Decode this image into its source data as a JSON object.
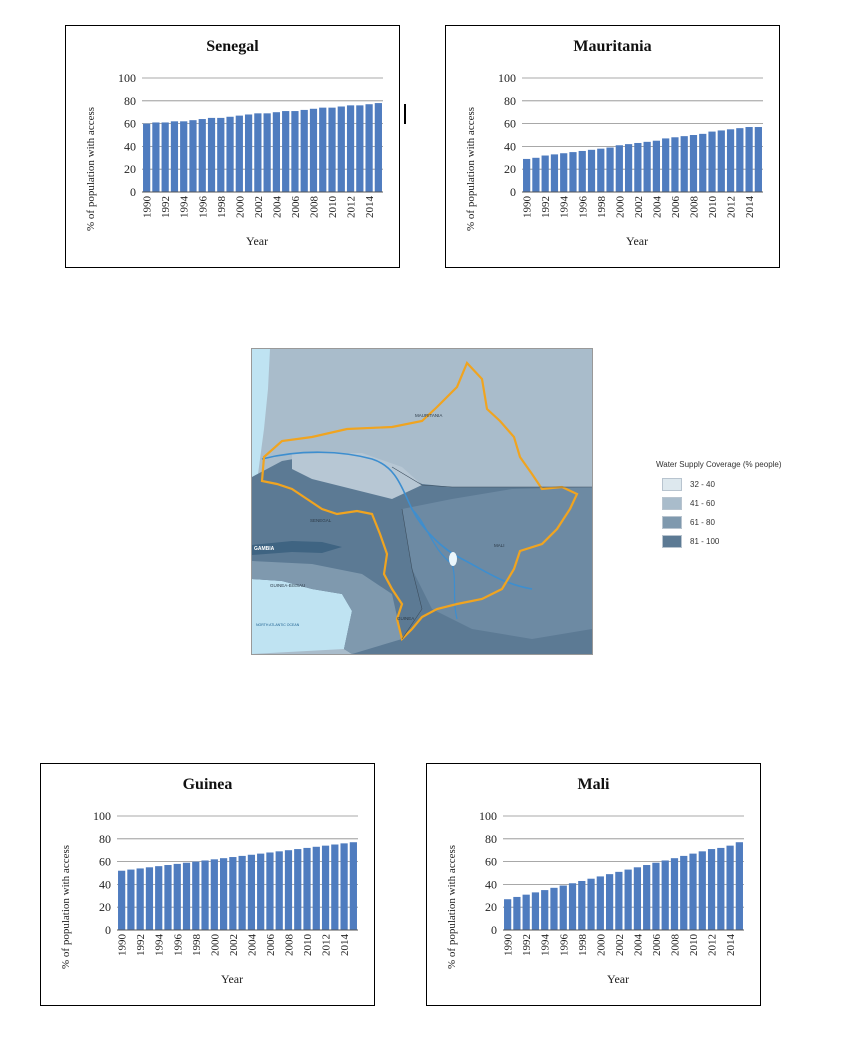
{
  "axis": {
    "ylabel": "% of population with access",
    "xlabel": "Year",
    "yticks": [
      "0",
      "20",
      "40",
      "60",
      "80",
      "100"
    ],
    "xticks": [
      "1990",
      "1992",
      "1994",
      "1996",
      "1998",
      "2000",
      "2002",
      "2004",
      "2006",
      "2008",
      "2010",
      "2012",
      "2014"
    ]
  },
  "legend": {
    "title": "Water Supply Coverage (% people)",
    "items": [
      {
        "label": "32 - 40",
        "color": "#dde8ee"
      },
      {
        "label": "41 - 60",
        "color": "#a9bccb"
      },
      {
        "label": "61 - 80",
        "color": "#7f99ae"
      },
      {
        "label": "81 - 100",
        "color": "#5c7a94"
      }
    ]
  },
  "map": {
    "labels": [
      "MAURITANIA",
      "SENEGAL",
      "MALI",
      "GUINEA",
      "GUINEA-BISSAU",
      "GAMBIA",
      "NORTH ATLANTIC OCEAN"
    ]
  },
  "chart_data": [
    {
      "type": "bar",
      "title": "Senegal",
      "xlabel": "Year",
      "ylabel": "% of population with access",
      "ylim": [
        0,
        100
      ],
      "bar_color": "#4f7cbf",
      "categories": [
        "1990",
        "1991",
        "1992",
        "1993",
        "1994",
        "1995",
        "1996",
        "1997",
        "1998",
        "1999",
        "2000",
        "2001",
        "2002",
        "2003",
        "2004",
        "2005",
        "2006",
        "2007",
        "2008",
        "2009",
        "2010",
        "2011",
        "2012",
        "2013",
        "2014",
        "2015"
      ],
      "values": [
        60,
        61,
        61,
        62,
        62,
        63,
        64,
        65,
        65,
        66,
        67,
        68,
        69,
        69,
        70,
        71,
        71,
        72,
        73,
        74,
        74,
        75,
        76,
        76,
        77,
        78
      ]
    },
    {
      "type": "bar",
      "title": "Mauritania",
      "xlabel": "Year",
      "ylabel": "% of population with access",
      "ylim": [
        0,
        100
      ],
      "bar_color": "#4f7cbf",
      "categories": [
        "1990",
        "1991",
        "1992",
        "1993",
        "1994",
        "1995",
        "1996",
        "1997",
        "1998",
        "1999",
        "2000",
        "2001",
        "2002",
        "2003",
        "2004",
        "2005",
        "2006",
        "2007",
        "2008",
        "2009",
        "2010",
        "2011",
        "2012",
        "2013",
        "2014",
        "2015"
      ],
      "values": [
        29,
        30,
        32,
        33,
        34,
        35,
        36,
        37,
        38,
        39,
        41,
        42,
        43,
        44,
        45,
        47,
        48,
        49,
        50,
        51,
        53,
        54,
        55,
        56,
        57,
        57
      ]
    },
    {
      "type": "bar",
      "title": "Guinea",
      "xlabel": "Year",
      "ylabel": "% of population with access",
      "ylim": [
        0,
        100
      ],
      "bar_color": "#4f7cbf",
      "categories": [
        "1990",
        "1991",
        "1992",
        "1993",
        "1994",
        "1995",
        "1996",
        "1997",
        "1998",
        "1999",
        "2000",
        "2001",
        "2002",
        "2003",
        "2004",
        "2005",
        "2006",
        "2007",
        "2008",
        "2009",
        "2010",
        "2011",
        "2012",
        "2013",
        "2014",
        "2015"
      ],
      "values": [
        52,
        53,
        54,
        55,
        56,
        57,
        58,
        59,
        60,
        61,
        62,
        63,
        64,
        65,
        66,
        67,
        68,
        69,
        70,
        71,
        72,
        73,
        74,
        75,
        76,
        77
      ]
    },
    {
      "type": "bar",
      "title": "Mali",
      "xlabel": "Year",
      "ylabel": "% of population with access",
      "ylim": [
        0,
        100
      ],
      "bar_color": "#4f7cbf",
      "categories": [
        "1990",
        "1991",
        "1992",
        "1993",
        "1994",
        "1995",
        "1996",
        "1997",
        "1998",
        "1999",
        "2000",
        "2001",
        "2002",
        "2003",
        "2004",
        "2005",
        "2006",
        "2007",
        "2008",
        "2009",
        "2010",
        "2011",
        "2012",
        "2013",
        "2014",
        "2015"
      ],
      "values": [
        27,
        29,
        31,
        33,
        35,
        37,
        39,
        41,
        43,
        45,
        47,
        49,
        51,
        53,
        55,
        57,
        59,
        61,
        63,
        65,
        67,
        69,
        71,
        72,
        74,
        77
      ]
    }
  ]
}
